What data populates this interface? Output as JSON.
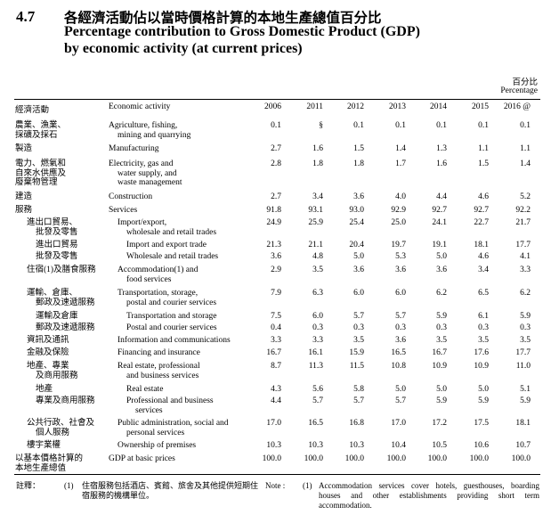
{
  "header": {
    "section_number": "4.7",
    "title_zh": "各經濟活動佔以當時價格計算的本地生產總值百分比",
    "title_en_line1": "Percentage contribution to Gross Domestic Product (GDP)",
    "title_en_line2": "by economic activity (at current prices)",
    "unit_zh": "百分比",
    "unit_en": "Percentage"
  },
  "table": {
    "col_activity_zh": "經濟活動",
    "col_activity_en": "Economic activity",
    "years": [
      "2006",
      "2011",
      "2012",
      "2013",
      "2014",
      "2015",
      "2016 @"
    ],
    "rows": [
      {
        "zh": [
          "農業、漁業、",
          "採礦及採石"
        ],
        "en": [
          "Agriculture, fishing,",
          "mining and quarrying"
        ],
        "values": [
          "0.1",
          "§",
          "0.1",
          "0.1",
          "0.1",
          "0.1",
          "0.1"
        ]
      },
      {
        "zh": [
          "製造"
        ],
        "en": [
          "Manufacturing"
        ],
        "values": [
          "2.7",
          "1.6",
          "1.5",
          "1.4",
          "1.3",
          "1.1",
          "1.1"
        ]
      },
      {
        "zh": [
          "電力、燃氣和",
          "自來水供應及",
          "廢棄物管理"
        ],
        "en": [
          "Electricity, gas and",
          "water supply, and",
          "waste management"
        ],
        "values": [
          "2.8",
          "1.8",
          "1.8",
          "1.7",
          "1.6",
          "1.5",
          "1.4"
        ]
      },
      {
        "zh": [
          "建造"
        ],
        "en": [
          "Construction"
        ],
        "values": [
          "2.7",
          "3.4",
          "3.6",
          "4.0",
          "4.4",
          "4.6",
          "5.2"
        ]
      },
      {
        "zh": [
          "服務"
        ],
        "en": [
          "Services"
        ],
        "values": [
          "91.8",
          "93.1",
          "93.0",
          "92.9",
          "92.7",
          "92.7",
          "92.2"
        ]
      },
      {
        "zh": [
          "進出口貿易、",
          "批發及零售"
        ],
        "en": [
          "Import/export,",
          "wholesale and retail trades"
        ],
        "values": [
          "24.9",
          "25.9",
          "25.4",
          "25.0",
          "24.1",
          "22.7",
          "21.7"
        ]
      },
      {
        "zh": [
          "進出口貿易"
        ],
        "en": [
          "Import and export trade"
        ],
        "values": [
          "21.3",
          "21.1",
          "20.4",
          "19.7",
          "19.1",
          "18.1",
          "17.7"
        ]
      },
      {
        "zh": [
          "批發及零售"
        ],
        "en": [
          "Wholesale and retail trades"
        ],
        "values": [
          "3.6",
          "4.8",
          "5.0",
          "5.3",
          "5.0",
          "4.6",
          "4.1"
        ]
      },
      {
        "zh": [
          "住宿(1)及膳食服務"
        ],
        "en": [
          "Accommodation(1) and",
          "food services"
        ],
        "values": [
          "2.9",
          "3.5",
          "3.6",
          "3.6",
          "3.6",
          "3.4",
          "3.3"
        ]
      },
      {
        "zh": [
          "運輸、倉庫、",
          "郵政及速遞服務"
        ],
        "en": [
          "Transportation, storage,",
          "postal and courier services"
        ],
        "values": [
          "7.9",
          "6.3",
          "6.0",
          "6.0",
          "6.2",
          "6.5",
          "6.2"
        ]
      },
      {
        "zh": [
          "運輸及倉庫"
        ],
        "en": [
          "Transportation and storage"
        ],
        "values": [
          "7.5",
          "6.0",
          "5.7",
          "5.7",
          "5.9",
          "6.1",
          "5.9"
        ]
      },
      {
        "zh": [
          "郵政及速遞服務"
        ],
        "en": [
          "Postal and courier services"
        ],
        "values": [
          "0.4",
          "0.3",
          "0.3",
          "0.3",
          "0.3",
          "0.3",
          "0.3"
        ]
      },
      {
        "zh": [
          "資訊及通訊"
        ],
        "en": [
          "Information and communications"
        ],
        "values": [
          "3.3",
          "3.3",
          "3.5",
          "3.6",
          "3.5",
          "3.5",
          "3.5"
        ]
      },
      {
        "zh": [
          "金融及保險"
        ],
        "en": [
          "Financing and insurance"
        ],
        "values": [
          "16.7",
          "16.1",
          "15.9",
          "16.5",
          "16.7",
          "17.6",
          "17.7"
        ]
      },
      {
        "zh": [
          "地產、專業",
          "及商用服務"
        ],
        "en": [
          "Real estate, professional",
          "and business services"
        ],
        "values": [
          "8.7",
          "11.3",
          "11.5",
          "10.8",
          "10.9",
          "10.9",
          "11.0"
        ]
      },
      {
        "zh": [
          "地產"
        ],
        "en": [
          "Real estate"
        ],
        "values": [
          "4.3",
          "5.6",
          "5.8",
          "5.0",
          "5.0",
          "5.0",
          "5.1"
        ]
      },
      {
        "zh": [
          "專業及商用服務"
        ],
        "en": [
          "Professional and business",
          "services"
        ],
        "values": [
          "4.4",
          "5.7",
          "5.7",
          "5.7",
          "5.9",
          "5.9",
          "5.9"
        ]
      },
      {
        "zh": [
          "公共行政、社會及",
          "個人服務"
        ],
        "en": [
          "Public administration, social and",
          "personal services"
        ],
        "values": [
          "17.0",
          "16.5",
          "16.8",
          "17.0",
          "17.2",
          "17.5",
          "18.1"
        ]
      },
      {
        "zh": [
          "樓宇業權"
        ],
        "en": [
          "Ownership of premises"
        ],
        "values": [
          "10.3",
          "10.3",
          "10.3",
          "10.4",
          "10.5",
          "10.6",
          "10.7"
        ]
      },
      {
        "zh": [
          "以基本價格計算的",
          "本地生產總值"
        ],
        "en": [
          "GDP at basic prices"
        ],
        "values": [
          "100.0",
          "100.0",
          "100.0",
          "100.0",
          "100.0",
          "100.0",
          "100.0"
        ]
      }
    ]
  },
  "notes": {
    "label_zh": "註釋：",
    "marker_zh": "(1)",
    "text_zh": [
      "住宿服務包括酒店、賓館、旅舍及其他提供短期住",
      "宿服務的機構單位。"
    ],
    "label_en": "Note :",
    "marker_en": "(1)",
    "text_en": [
      "Accommodation services cover hotels, guesthouses, boarding",
      "houses and other establishments providing short term",
      "accommodation."
    ]
  }
}
